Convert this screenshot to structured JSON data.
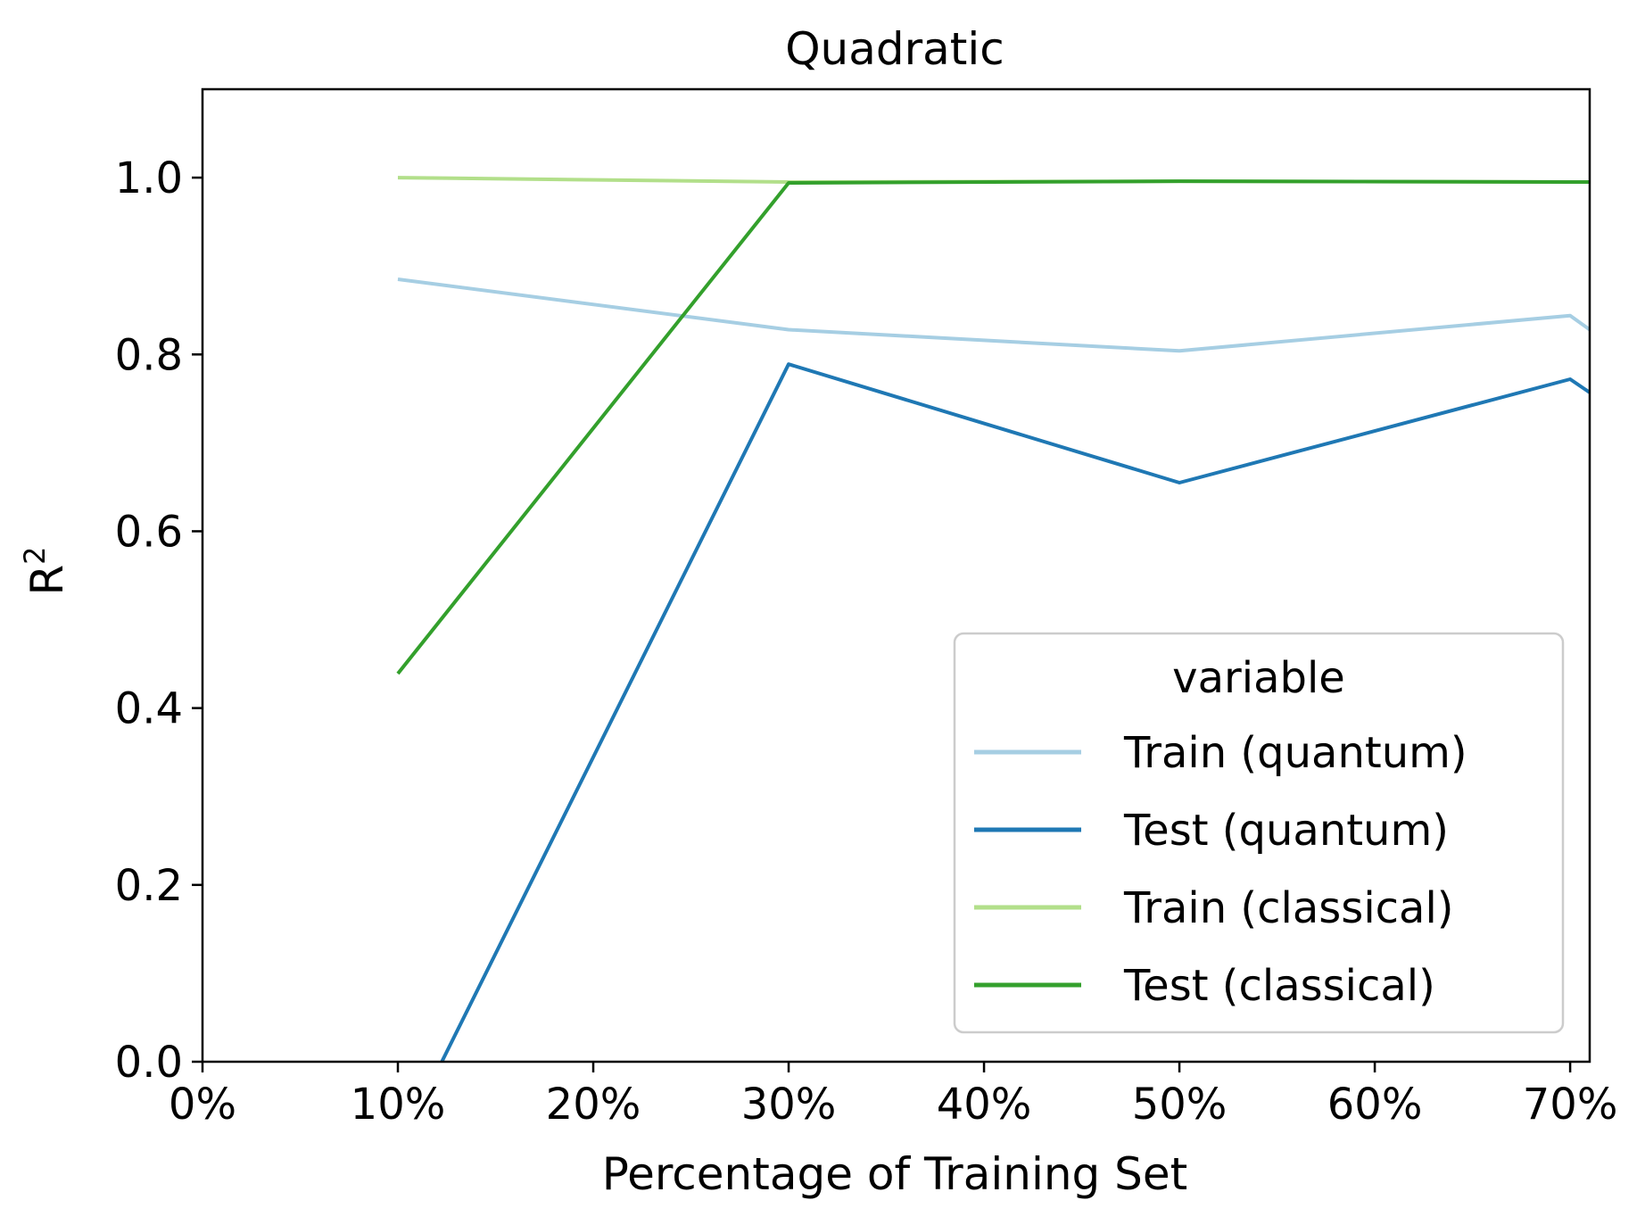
{
  "chart_data": {
    "type": "line",
    "title": "Quadratic",
    "xlabel": "Percentage of Training Set",
    "ylabel_main": "R",
    "ylabel_sup": "2",
    "xlim": [
      0,
      71
    ],
    "ylim": [
      0,
      1.1
    ],
    "x_ticks": [
      0,
      10,
      20,
      30,
      40,
      50,
      60,
      70
    ],
    "x_tick_labels": [
      "0%",
      "10%",
      "20%",
      "30%",
      "40%",
      "50%",
      "60%",
      "70%"
    ],
    "y_ticks": [
      0,
      0.2,
      0.4,
      0.6,
      0.8,
      1.0
    ],
    "y_tick_labels": [
      "0.0",
      "0.2",
      "0.4",
      "0.6",
      "0.8",
      "1.0"
    ],
    "grid": false,
    "legend": {
      "title": "variable",
      "position": "lower-right"
    },
    "series": [
      {
        "name": "Train (quantum)",
        "color": "#a6cee3",
        "x": [
          10,
          30,
          50,
          70,
          71
        ],
        "y": [
          0.885,
          0.828,
          0.804,
          0.844,
          0.828
        ]
      },
      {
        "name": "Test (quantum)",
        "color": "#1f78b4",
        "x": [
          10,
          30,
          50,
          70,
          71
        ],
        "y": [
          -0.1,
          0.789,
          0.655,
          0.772,
          0.757
        ]
      },
      {
        "name": "Train (classical)",
        "color": "#b2df8a",
        "x": [
          10,
          30,
          50,
          70,
          71
        ],
        "y": [
          1.0,
          0.995,
          0.996,
          0.995,
          0.995
        ]
      },
      {
        "name": "Test (classical)",
        "color": "#33a02c",
        "x": [
          10,
          30,
          50,
          70,
          71
        ],
        "y": [
          0.439,
          0.994,
          0.996,
          0.995,
          0.995
        ]
      }
    ]
  }
}
